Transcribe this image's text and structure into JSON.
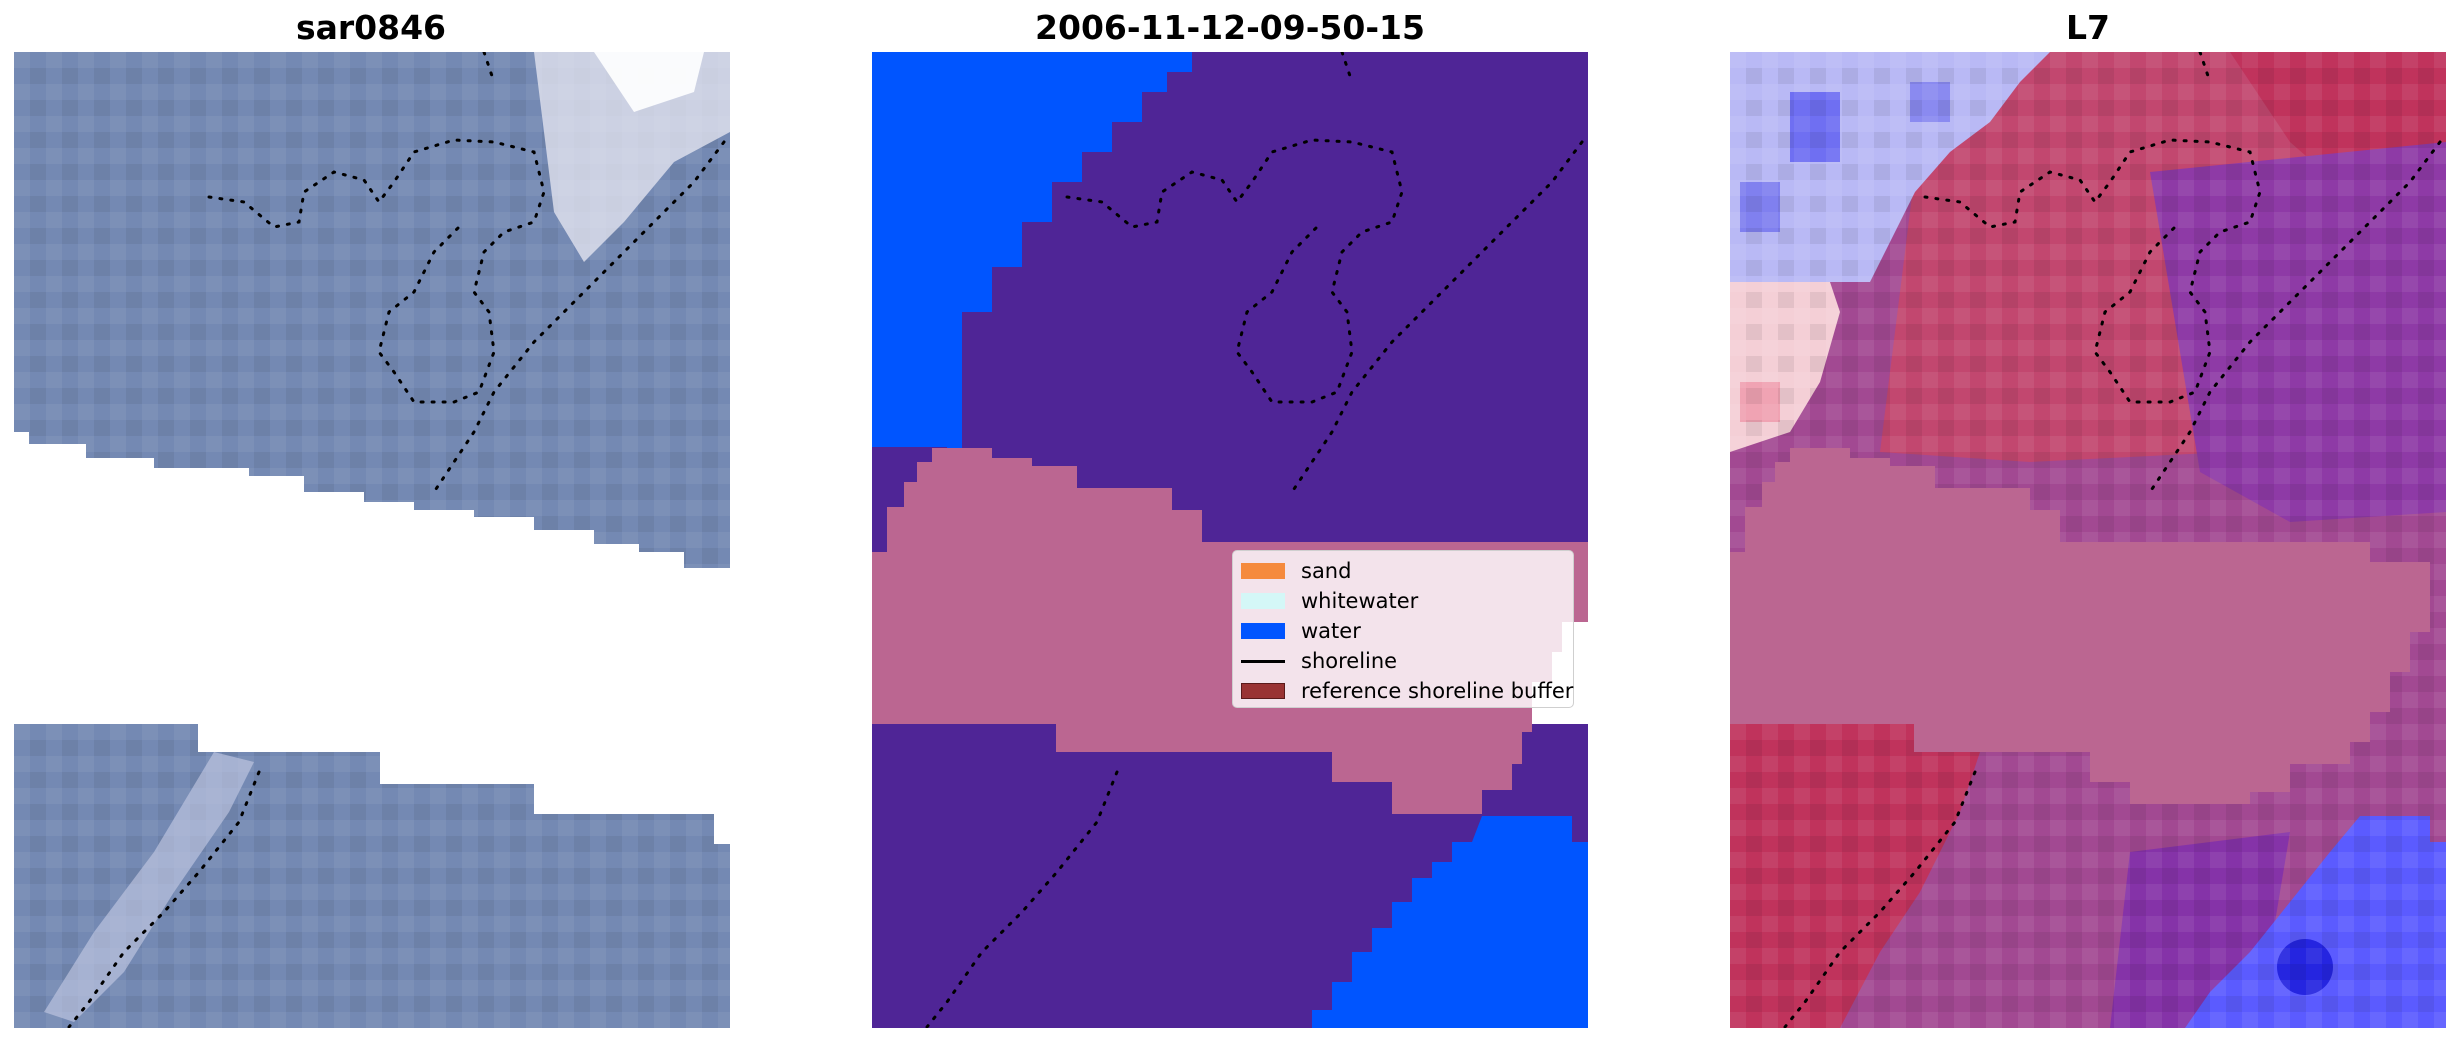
{
  "panels": [
    {
      "title": "sar0846"
    },
    {
      "title": "2006-11-12-09-50-15"
    },
    {
      "title": "L7"
    }
  ],
  "legend": {
    "items": [
      {
        "label": "sand",
        "type": "patch",
        "color": "#f58a3d"
      },
      {
        "label": "whitewater",
        "type": "patch",
        "color": "#d4f7f7"
      },
      {
        "label": "water",
        "type": "patch",
        "color": "#0055ff"
      },
      {
        "label": "shoreline",
        "type": "line",
        "color": "#000000"
      },
      {
        "label": "reference shoreline buffer",
        "type": "patch",
        "color": "#993333"
      }
    ]
  },
  "colors": {
    "classified_land": "#4f2596",
    "classified_water": "#0055ff",
    "reference_buffer": "#bb6691",
    "rgb_base": "#7489b3",
    "index_high": "#c0335c",
    "index_mid": "#a24992",
    "index_low": "#5b5bff"
  }
}
